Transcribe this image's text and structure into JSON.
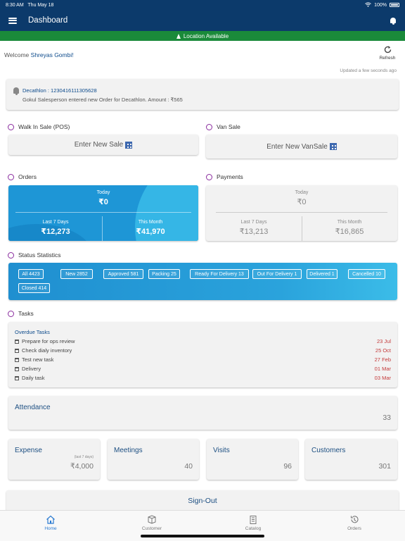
{
  "status_bar": {
    "time": "8:30 AM",
    "date": "Thu May 18",
    "battery": "100%"
  },
  "header": {
    "title": "Dashboard"
  },
  "location": {
    "text": "Location Available"
  },
  "welcome": {
    "prefix": "Welcome",
    "name": "Shreyas Gombi!"
  },
  "refresh": {
    "label": "Refresh",
    "updated": "Updated a few seconds ago"
  },
  "notification": {
    "title": "Decathlon : 1230416111305628",
    "text": "Gokul Salesperson entered new Order for Decathlon. Amount : ₹565"
  },
  "walk_in_sale": {
    "title": "Walk In Sale (POS)",
    "button": "Enter New Sale"
  },
  "van_sale": {
    "title": "Van Sale",
    "button": "Enter New VanSale"
  },
  "orders": {
    "title": "Orders",
    "today_label": "Today",
    "today_value": "₹0",
    "last7_label": "Last 7 Days",
    "last7_value": "₹12,273",
    "month_label": "This Month",
    "month_value": "₹41,970"
  },
  "payments": {
    "title": "Payments",
    "today_label": "Today",
    "today_value": "₹0",
    "last7_label": "Last 7 Days",
    "last7_value": "₹13,213",
    "month_label": "This Month",
    "month_value": "₹16,865"
  },
  "status_statistics": {
    "title": "Status Statistics",
    "chips": [
      "All 4423",
      "New 2852",
      "Approved 581",
      "Packing 25",
      "Ready For Delivery 13",
      "Out For Delivery 1",
      "Delivered 1",
      "Cancelled 10",
      "Closed 414"
    ]
  },
  "tasks": {
    "title": "Tasks",
    "overdue_label": "Overdue Tasks",
    "items": [
      {
        "name": "Prepare for ops review",
        "date": "23 Jul"
      },
      {
        "name": "Check dialy inventory",
        "date": "25 Oct"
      },
      {
        "name": "Test new task",
        "date": "27 Feb"
      },
      {
        "name": "Delivery",
        "date": "01 Mar"
      },
      {
        "name": "Daily task",
        "date": "03 Mar"
      }
    ]
  },
  "attendance": {
    "label": "Attendance",
    "value": "33"
  },
  "tiles": {
    "expense": {
      "label": "Expense",
      "sub": "(last 7 days)",
      "value": "₹4,000"
    },
    "meetings": {
      "label": "Meetings",
      "value": "40"
    },
    "visits": {
      "label": "Visits",
      "value": "96"
    },
    "customers": {
      "label": "Customers",
      "value": "301"
    }
  },
  "signout": {
    "label": "Sign-Out"
  },
  "tabbar": {
    "home": "Home",
    "customer": "Customer",
    "catalog": "Catalog",
    "orders": "Orders"
  },
  "colors": {
    "nav": "#0c3a6b",
    "location": "#1a8a3a",
    "accent_blue": "#1e96d6",
    "active_tab": "#2a7ad1",
    "overdue_date": "#c43a3a"
  }
}
